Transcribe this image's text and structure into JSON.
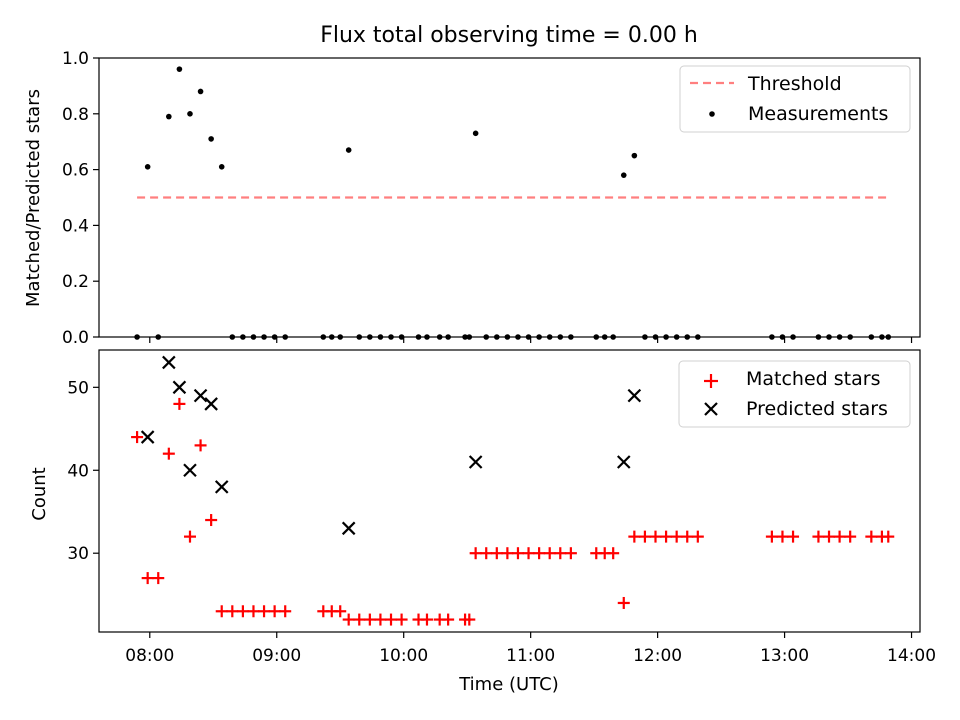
{
  "chart_data": [
    {
      "type": "scatter",
      "title": "Flux total observing time = 0.00 h",
      "ylabel": "Matched/Predicted stars",
      "xlabel": "",
      "ylim": [
        0,
        1.0
      ],
      "xlim": [
        "07:36",
        "14:04"
      ],
      "y_ticks": [
        0.0,
        0.2,
        0.4,
        0.6,
        0.8,
        1.0
      ],
      "y_tick_labels": [
        "0.0",
        "0.2",
        "0.4",
        "0.6",
        "0.8",
        "1.0"
      ],
      "legend_position": "top-right",
      "legend": [
        {
          "label": "Threshold",
          "color": "#ff7f7f",
          "style": "dashed-line"
        },
        {
          "label": "Measurements",
          "color": "#000000",
          "style": "dot"
        }
      ],
      "threshold": {
        "value": 0.5,
        "x_start": "07:54",
        "x_end": "13:49",
        "color": "#ff7f7f"
      },
      "series": [
        {
          "name": "Measurements",
          "color": "#000000",
          "points": [
            {
              "x": "07:54",
              "y": 0.0
            },
            {
              "x": "07:59",
              "y": 0.61
            },
            {
              "x": "08:04",
              "y": 0.0
            },
            {
              "x": "08:09",
              "y": 0.79
            },
            {
              "x": "08:14",
              "y": 0.96
            },
            {
              "x": "08:19",
              "y": 0.8
            },
            {
              "x": "08:24",
              "y": 0.88
            },
            {
              "x": "08:29",
              "y": 0.71
            },
            {
              "x": "08:34",
              "y": 0.61
            },
            {
              "x": "08:39",
              "y": 0.0
            },
            {
              "x": "08:44",
              "y": 0.0
            },
            {
              "x": "08:49",
              "y": 0.0
            },
            {
              "x": "08:54",
              "y": 0.0
            },
            {
              "x": "08:59",
              "y": 0.0
            },
            {
              "x": "09:04",
              "y": 0.0
            },
            {
              "x": "09:22",
              "y": 0.0
            },
            {
              "x": "09:26",
              "y": 0.0
            },
            {
              "x": "09:30",
              "y": 0.0
            },
            {
              "x": "09:34",
              "y": 0.67
            },
            {
              "x": "09:39",
              "y": 0.0
            },
            {
              "x": "09:44",
              "y": 0.0
            },
            {
              "x": "09:49",
              "y": 0.0
            },
            {
              "x": "09:54",
              "y": 0.0
            },
            {
              "x": "09:59",
              "y": 0.0
            },
            {
              "x": "10:07",
              "y": 0.0
            },
            {
              "x": "10:11",
              "y": 0.0
            },
            {
              "x": "10:17",
              "y": 0.0
            },
            {
              "x": "10:21",
              "y": 0.0
            },
            {
              "x": "10:29",
              "y": 0.0
            },
            {
              "x": "10:31",
              "y": 0.0
            },
            {
              "x": "10:34",
              "y": 0.73
            },
            {
              "x": "10:39",
              "y": 0.0
            },
            {
              "x": "10:44",
              "y": 0.0
            },
            {
              "x": "10:49",
              "y": 0.0
            },
            {
              "x": "10:54",
              "y": 0.0
            },
            {
              "x": "10:59",
              "y": 0.0
            },
            {
              "x": "11:04",
              "y": 0.0
            },
            {
              "x": "11:09",
              "y": 0.0
            },
            {
              "x": "11:14",
              "y": 0.0
            },
            {
              "x": "11:19",
              "y": 0.0
            },
            {
              "x": "11:31",
              "y": 0.0
            },
            {
              "x": "11:35",
              "y": 0.0
            },
            {
              "x": "11:39",
              "y": 0.0
            },
            {
              "x": "11:44",
              "y": 0.58
            },
            {
              "x": "11:49",
              "y": 0.65
            },
            {
              "x": "11:54",
              "y": 0.0
            },
            {
              "x": "11:59",
              "y": 0.0
            },
            {
              "x": "12:04",
              "y": 0.0
            },
            {
              "x": "12:09",
              "y": 0.0
            },
            {
              "x": "12:14",
              "y": 0.0
            },
            {
              "x": "12:19",
              "y": 0.0
            },
            {
              "x": "12:54",
              "y": 0.0
            },
            {
              "x": "12:59",
              "y": 0.0
            },
            {
              "x": "13:04",
              "y": 0.0
            },
            {
              "x": "13:16",
              "y": 0.0
            },
            {
              "x": "13:21",
              "y": 0.0
            },
            {
              "x": "13:26",
              "y": 0.0
            },
            {
              "x": "13:31",
              "y": 0.0
            },
            {
              "x": "13:41",
              "y": 0.0
            },
            {
              "x": "13:46",
              "y": 0.0
            },
            {
              "x": "13:49",
              "y": 0.0
            }
          ]
        }
      ]
    },
    {
      "type": "scatter",
      "title": "",
      "ylabel": "Count",
      "xlabel": "Time (UTC)",
      "ylim": [
        20.5,
        54.5
      ],
      "xlim": [
        "07:36",
        "14:04"
      ],
      "x_ticks": [
        "08:00",
        "09:00",
        "10:00",
        "11:00",
        "12:00",
        "13:00",
        "14:00"
      ],
      "x_tick_labels": [
        "08:00",
        "09:00",
        "10:00",
        "11:00",
        "12:00",
        "13:00",
        "14:00"
      ],
      "y_ticks": [
        30,
        40,
        50
      ],
      "y_tick_labels": [
        "30",
        "40",
        "50"
      ],
      "legend_position": "top-right",
      "legend": [
        {
          "label": "Matched stars",
          "color": "#ff0000",
          "style": "plus"
        },
        {
          "label": "Predicted stars",
          "color": "#000000",
          "style": "cross"
        }
      ],
      "series": [
        {
          "name": "Matched stars",
          "color": "#ff0000",
          "points": [
            {
              "x": "07:54",
              "y": 44
            },
            {
              "x": "07:59",
              "y": 27
            },
            {
              "x": "08:04",
              "y": 27
            },
            {
              "x": "08:09",
              "y": 42
            },
            {
              "x": "08:14",
              "y": 48
            },
            {
              "x": "08:19",
              "y": 32
            },
            {
              "x": "08:24",
              "y": 43
            },
            {
              "x": "08:29",
              "y": 34
            },
            {
              "x": "08:34",
              "y": 23
            },
            {
              "x": "08:39",
              "y": 23
            },
            {
              "x": "08:44",
              "y": 23
            },
            {
              "x": "08:49",
              "y": 23
            },
            {
              "x": "08:54",
              "y": 23
            },
            {
              "x": "08:59",
              "y": 23
            },
            {
              "x": "09:04",
              "y": 23
            },
            {
              "x": "09:22",
              "y": 23
            },
            {
              "x": "09:26",
              "y": 23
            },
            {
              "x": "09:30",
              "y": 23
            },
            {
              "x": "09:34",
              "y": 22
            },
            {
              "x": "09:39",
              "y": 22
            },
            {
              "x": "09:44",
              "y": 22
            },
            {
              "x": "09:49",
              "y": 22
            },
            {
              "x": "09:54",
              "y": 22
            },
            {
              "x": "09:59",
              "y": 22
            },
            {
              "x": "10:07",
              "y": 22
            },
            {
              "x": "10:11",
              "y": 22
            },
            {
              "x": "10:17",
              "y": 22
            },
            {
              "x": "10:21",
              "y": 22
            },
            {
              "x": "10:29",
              "y": 22
            },
            {
              "x": "10:31",
              "y": 22
            },
            {
              "x": "10:34",
              "y": 30
            },
            {
              "x": "10:39",
              "y": 30
            },
            {
              "x": "10:44",
              "y": 30
            },
            {
              "x": "10:49",
              "y": 30
            },
            {
              "x": "10:54",
              "y": 30
            },
            {
              "x": "10:59",
              "y": 30
            },
            {
              "x": "11:04",
              "y": 30
            },
            {
              "x": "11:09",
              "y": 30
            },
            {
              "x": "11:14",
              "y": 30
            },
            {
              "x": "11:19",
              "y": 30
            },
            {
              "x": "11:31",
              "y": 30
            },
            {
              "x": "11:35",
              "y": 30
            },
            {
              "x": "11:39",
              "y": 30
            },
            {
              "x": "11:44",
              "y": 24
            },
            {
              "x": "11:49",
              "y": 32
            },
            {
              "x": "11:54",
              "y": 32
            },
            {
              "x": "11:59",
              "y": 32
            },
            {
              "x": "12:04",
              "y": 32
            },
            {
              "x": "12:09",
              "y": 32
            },
            {
              "x": "12:14",
              "y": 32
            },
            {
              "x": "12:19",
              "y": 32
            },
            {
              "x": "12:54",
              "y": 32
            },
            {
              "x": "12:59",
              "y": 32
            },
            {
              "x": "13:04",
              "y": 32
            },
            {
              "x": "13:16",
              "y": 32
            },
            {
              "x": "13:21",
              "y": 32
            },
            {
              "x": "13:26",
              "y": 32
            },
            {
              "x": "13:31",
              "y": 32
            },
            {
              "x": "13:41",
              "y": 32
            },
            {
              "x": "13:46",
              "y": 32
            },
            {
              "x": "13:49",
              "y": 32
            }
          ]
        },
        {
          "name": "Predicted stars",
          "color": "#000000",
          "points": [
            {
              "x": "07:59",
              "y": 44
            },
            {
              "x": "08:09",
              "y": 53
            },
            {
              "x": "08:14",
              "y": 50
            },
            {
              "x": "08:19",
              "y": 40
            },
            {
              "x": "08:24",
              "y": 49
            },
            {
              "x": "08:29",
              "y": 48
            },
            {
              "x": "08:34",
              "y": 38
            },
            {
              "x": "09:34",
              "y": 33
            },
            {
              "x": "10:34",
              "y": 41
            },
            {
              "x": "11:44",
              "y": 41
            },
            {
              "x": "11:49",
              "y": 49
            }
          ]
        }
      ]
    }
  ]
}
